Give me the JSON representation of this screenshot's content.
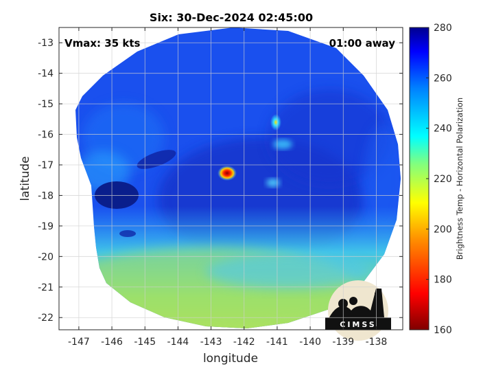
{
  "title": "Six: 30-Dec-2024 02:45:00",
  "annotations": {
    "vmax": "Vmax: 35 kts",
    "time_away": "01:00 away"
  },
  "logo_text": "CIMSS",
  "map": {
    "xlabel": "longitude",
    "ylabel": "latitude",
    "xlim": [
      -147.6,
      -137.2
    ],
    "ylim": [
      -22.4,
      -12.5
    ],
    "xticks": [
      "-147",
      "-146",
      "-145",
      "-144",
      "-143",
      "-142",
      "-141",
      "-140",
      "-139",
      "-138"
    ],
    "yticks": [
      "-13",
      "-14",
      "-15",
      "-16",
      "-17",
      "-18",
      "-19",
      "-20",
      "-21",
      "-22"
    ],
    "grid": true
  },
  "colorbar": {
    "label": "Brightness Temp - Horizontal Polarization",
    "range": [
      160,
      280
    ],
    "ticks": [
      "280",
      "260",
      "240",
      "220",
      "200",
      "180",
      "160"
    ],
    "colormap": "jet"
  },
  "colors": {
    "background_field": "#1a50ee",
    "cold_core": "#ff1a00",
    "cold_cloud_band": "#13ccff",
    "southern_warm": "#9ee066",
    "deep_blue_patch": "#0a1e8c"
  }
}
